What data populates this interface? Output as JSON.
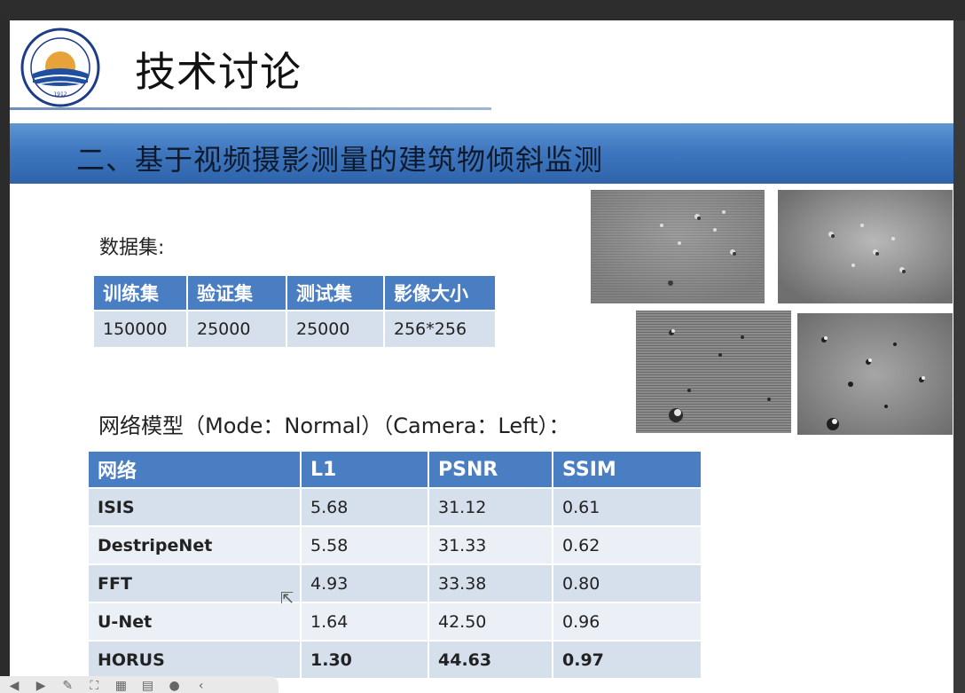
{
  "slide": {
    "title": "技术讨论",
    "banner": "二、基于视频摄影测量的建筑物倾斜监测",
    "logo": {
      "arc_text": "上海海洋大学",
      "ring_text": "SHANGHAI OCEAN UNIVERSITY",
      "year": "1912"
    }
  },
  "dataset": {
    "label": "数据集:",
    "headers": [
      "训练集",
      "验证集",
      "测试集",
      "影像大小"
    ],
    "values": [
      "150000",
      "25000",
      "25000",
      "256*256"
    ]
  },
  "model": {
    "label": "网络模型（Mode：Normal）（Camera：Left）："
  },
  "results": {
    "headers": [
      "网络",
      "L1",
      "PSNR",
      "SSIM"
    ],
    "rows": [
      {
        "name": "ISIS",
        "l1": "5.68",
        "psnr": "31.12",
        "ssim": "0.61"
      },
      {
        "name": "DestripeNet",
        "l1": "5.58",
        "psnr": "31.33",
        "ssim": "0.62"
      },
      {
        "name": "FFT",
        "l1": "4.93",
        "psnr": "33.38",
        "ssim": "0.80"
      },
      {
        "name": "U-Net",
        "l1": "1.64",
        "psnr": "42.50",
        "ssim": "0.96"
      },
      {
        "name": "HORUS",
        "l1": "1.30",
        "psnr": "44.63",
        "ssim": "0.97"
      }
    ]
  },
  "toolbar": {
    "icons": [
      "back-icon",
      "forward-icon",
      "pen-icon",
      "fit-icon",
      "grid-icon",
      "slides-icon",
      "more-icon",
      "arrow-left-icon"
    ]
  }
}
